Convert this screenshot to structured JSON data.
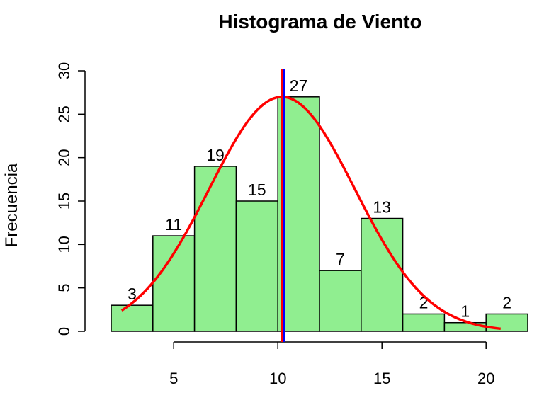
{
  "chart_data": {
    "type": "bar",
    "title": "Histograma de Viento",
    "xlabel": "",
    "ylabel": "Frecuencia",
    "bin_edges": [
      2,
      4,
      6,
      8,
      10,
      12,
      14,
      16,
      18,
      20,
      22
    ],
    "values": [
      3,
      11,
      19,
      15,
      27,
      7,
      13,
      2,
      1,
      2
    ],
    "xlim": [
      2,
      22
    ],
    "ylim": [
      0,
      30
    ],
    "x_ticks": [
      5,
      10,
      15,
      20
    ],
    "y_ticks": [
      0,
      5,
      10,
      15,
      20,
      25,
      30
    ],
    "bar_color": "#90EE90",
    "bar_border_color": "#000000",
    "density_curve": {
      "color": "#FF0000",
      "mean": 10.2,
      "sd": 3.5,
      "peak": 27,
      "x_range": [
        2.5,
        20.7
      ]
    },
    "vertical_lines": [
      {
        "x": 10.2,
        "color": "#FF0000"
      },
      {
        "x": 10.3,
        "color": "#0000FF"
      }
    ],
    "grid": false
  }
}
